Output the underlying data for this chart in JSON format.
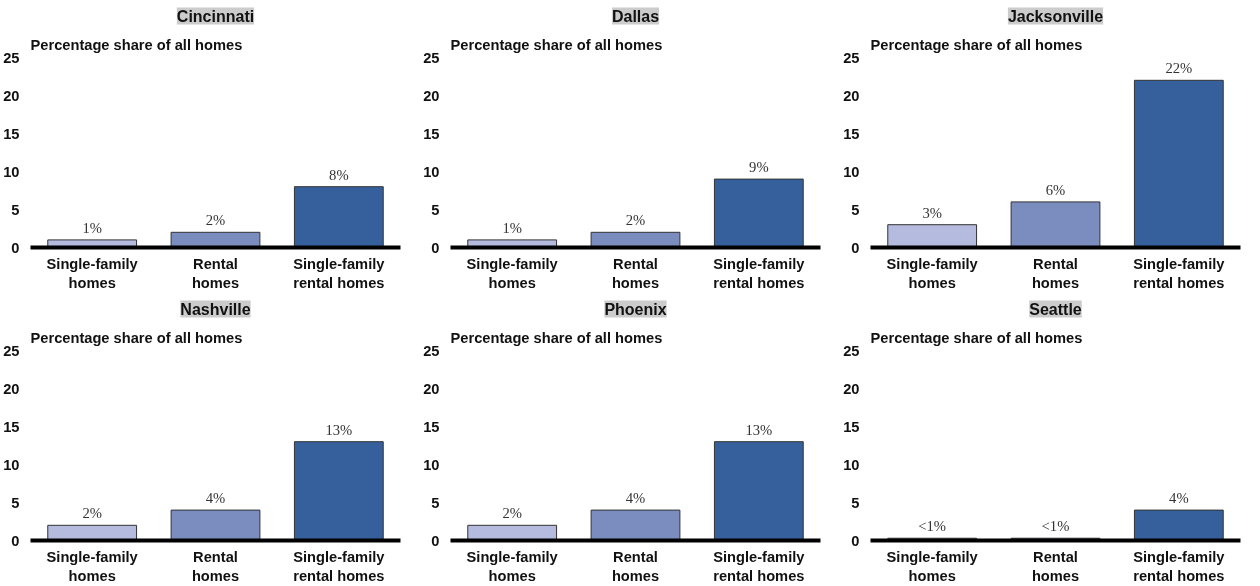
{
  "chart_data": [
    {
      "type": "bar",
      "title": "Cincinnati",
      "ylabel": "Percentage share of all homes",
      "categories": [
        "Single-family\nhomes",
        "Rental\nhomes",
        "Single-family\nrental homes"
      ],
      "values": [
        1,
        2,
        8
      ],
      "value_labels": [
        "1%",
        "2%",
        "8%"
      ],
      "colors": [
        "#b4bbde",
        "#7b8cbf",
        "#36609b"
      ],
      "ylim": [
        0,
        25
      ],
      "yticks": [
        0,
        5,
        10,
        15,
        20,
        25
      ],
      "grid": false
    },
    {
      "type": "bar",
      "title": "Dallas",
      "ylabel": "Percentage share of all homes",
      "categories": [
        "Single-family\nhomes",
        "Rental\nhomes",
        "Single-family\nrental homes"
      ],
      "values": [
        1,
        2,
        9
      ],
      "value_labels": [
        "1%",
        "2%",
        "9%"
      ],
      "colors": [
        "#b4bbde",
        "#7b8cbf",
        "#36609b"
      ],
      "ylim": [
        0,
        25
      ],
      "yticks": [
        0,
        5,
        10,
        15,
        20,
        25
      ],
      "grid": false
    },
    {
      "type": "bar",
      "title": "Jacksonville",
      "ylabel": "Percentage share of all homes",
      "categories": [
        "Single-family\nhomes",
        "Rental\nhomes",
        "Single-family\nrental homes"
      ],
      "values": [
        3,
        6,
        22
      ],
      "value_labels": [
        "3%",
        "6%",
        "22%"
      ],
      "colors": [
        "#b4bbde",
        "#7b8cbf",
        "#36609b"
      ],
      "ylim": [
        0,
        25
      ],
      "yticks": [
        0,
        5,
        10,
        15,
        20,
        25
      ],
      "grid": false
    },
    {
      "type": "bar",
      "title": "Nashville",
      "ylabel": "Percentage share of all homes",
      "categories": [
        "Single-family\nhomes",
        "Rental\nhomes",
        "Single-family\nrental homes"
      ],
      "values": [
        2,
        4,
        13
      ],
      "value_labels": [
        "2%",
        "4%",
        "13%"
      ],
      "colors": [
        "#b4bbde",
        "#7b8cbf",
        "#36609b"
      ],
      "ylim": [
        0,
        25
      ],
      "yticks": [
        0,
        5,
        10,
        15,
        20,
        25
      ],
      "grid": false
    },
    {
      "type": "bar",
      "title": "Phoenix",
      "ylabel": "Percentage share of all homes",
      "categories": [
        "Single-family\nhomes",
        "Rental\nhomes",
        "Single-family\nrental homes"
      ],
      "values": [
        2,
        4,
        13
      ],
      "value_labels": [
        "2%",
        "4%",
        "13%"
      ],
      "colors": [
        "#b4bbde",
        "#7b8cbf",
        "#36609b"
      ],
      "ylim": [
        0,
        25
      ],
      "yticks": [
        0,
        5,
        10,
        15,
        20,
        25
      ],
      "grid": false
    },
    {
      "type": "bar",
      "title": "Seattle",
      "ylabel": "Percentage share of all homes",
      "categories": [
        "Single-family\nhomes",
        "Rental\nhomes",
        "Single-family\nrental homes"
      ],
      "values": [
        0.3,
        0.3,
        4
      ],
      "value_labels": [
        "<1%",
        "<1%",
        "4%"
      ],
      "colors": [
        "#b4bbde",
        "#7b8cbf",
        "#36609b"
      ],
      "ylim": [
        0,
        25
      ],
      "yticks": [
        0,
        5,
        10,
        15,
        20,
        25
      ],
      "grid": false
    }
  ]
}
